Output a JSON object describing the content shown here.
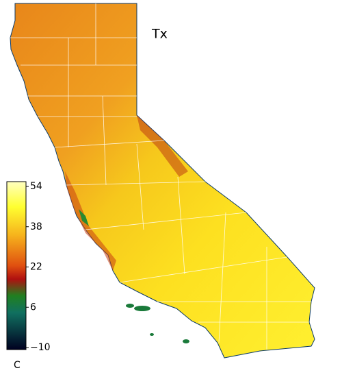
{
  "map": {
    "title": "Tx",
    "colorbar": {
      "unit": "C",
      "ticks": [
        54,
        38,
        22,
        6,
        {
          "value": -10,
          "label": "−10"
        }
      ]
    }
  }
}
